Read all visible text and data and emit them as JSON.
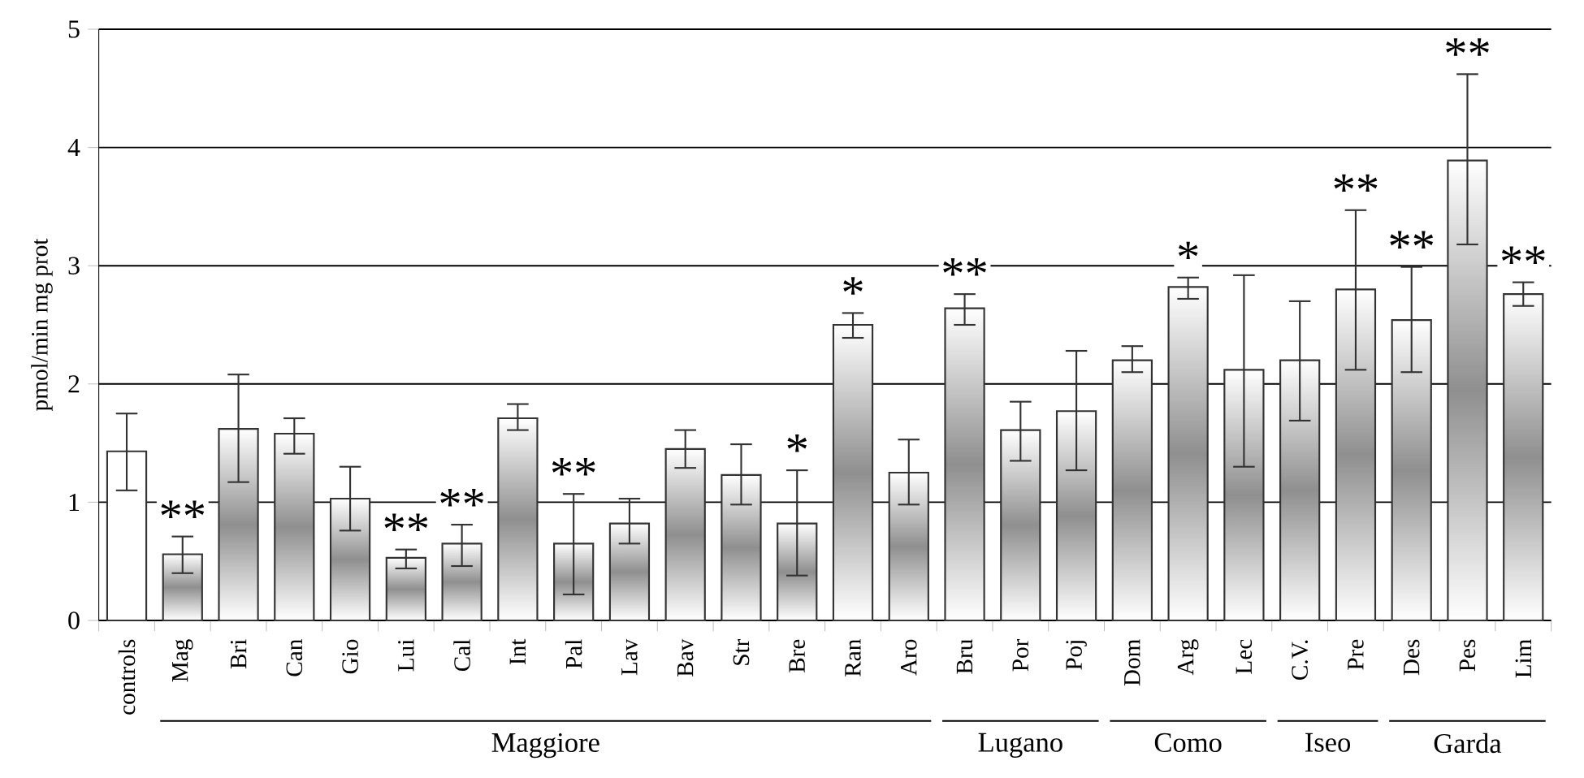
{
  "chart_data": {
    "type": "bar",
    "ylabel": "pmol/min mg prot",
    "categories": [
      "controls",
      "Mag",
      "Bri",
      "Can",
      "Gio",
      "Lui",
      "Cal",
      "Int",
      "Pal",
      "Lav",
      "Bav",
      "Str",
      "Bre",
      "Ran",
      "Aro",
      "Bru",
      "Por",
      "Poj",
      "Dom",
      "Arg",
      "Lec",
      "C.V.",
      "Pre",
      "Des",
      "Pes",
      "Lim"
    ],
    "values": [
      1.43,
      0.56,
      1.62,
      1.58,
      1.03,
      0.53,
      0.65,
      1.71,
      0.65,
      0.82,
      1.45,
      1.23,
      0.82,
      2.5,
      1.25,
      2.64,
      1.61,
      1.77,
      2.2,
      2.82,
      2.12,
      2.2,
      2.8,
      2.54,
      3.89,
      2.76
    ],
    "errors": [
      [
        1.1,
        1.75
      ],
      [
        0.4,
        0.71
      ],
      [
        1.17,
        2.08
      ],
      [
        1.41,
        1.71
      ],
      [
        0.76,
        1.3
      ],
      [
        0.44,
        0.6
      ],
      [
        0.46,
        0.81
      ],
      [
        1.61,
        1.83
      ],
      [
        0.22,
        1.07
      ],
      [
        0.65,
        1.03
      ],
      [
        1.29,
        1.61
      ],
      [
        0.98,
        1.49
      ],
      [
        0.38,
        1.27
      ],
      [
        2.39,
        2.6
      ],
      [
        0.98,
        1.53
      ],
      [
        2.5,
        2.76
      ],
      [
        1.35,
        1.85
      ],
      [
        1.27,
        2.28
      ],
      [
        2.1,
        2.32
      ],
      [
        2.72,
        2.9
      ],
      [
        1.3,
        2.92
      ],
      [
        1.69,
        2.7
      ],
      [
        2.12,
        3.47
      ],
      [
        2.1,
        2.99
      ],
      [
        3.18,
        4.62
      ],
      [
        2.66,
        2.86
      ]
    ],
    "colors": [
      "#ffffff",
      "#8f8f8f",
      "#8f8f8f",
      "#8f8f8f",
      "#8f8f8f",
      "#8f8f8f",
      "#8f8f8f",
      "#8f8f8f",
      "#8f8f8f",
      "#8f8f8f",
      "#8f8f8f",
      "#8f8f8f",
      "#8f8f8f",
      "#8f8f8f",
      "#8f8f8f",
      "#8f8f8f",
      "#8f8f8f",
      "#8f8f8f",
      "#8f8f8f",
      "#8f8f8f",
      "#8f8f8f",
      "#8f8f8f",
      "#8f8f8f",
      "#8f8f8f",
      "#8f8f8f",
      "#8f8f8f"
    ],
    "ylim": [
      0,
      5
    ],
    "yticks": [
      0,
      1,
      2,
      3,
      4,
      5
    ],
    "grid": "y",
    "annotations": [
      {
        "text": "**",
        "x": "Mag",
        "y": 0.56
      },
      {
        "text": "**",
        "x": "Lui",
        "y": 0.53
      },
      {
        "text": "**",
        "x": "Cal",
        "y": 0.65
      },
      {
        "text": "**",
        "x": "Pal",
        "y": 0.65
      },
      {
        "text": "*",
        "x": "Bre",
        "y": 0.82
      },
      {
        "text": "*",
        "x": "Ran",
        "y": 2.5
      },
      {
        "text": "**",
        "x": "Bru",
        "y": 2.64
      },
      {
        "text": "*",
        "x": "Arg",
        "y": 2.82
      },
      {
        "text": "**",
        "x": "Pre",
        "y": 2.8
      },
      {
        "text": "**",
        "x": "Des",
        "y": 2.54
      },
      {
        "text": "**",
        "x": "Pes",
        "y": 3.89
      },
      {
        "text": "**",
        "x": "Lim",
        "y": 2.76
      },
      "Maggiore",
      "Lugano",
      "Como",
      "Iseo",
      "Garda"
    ]
  }
}
